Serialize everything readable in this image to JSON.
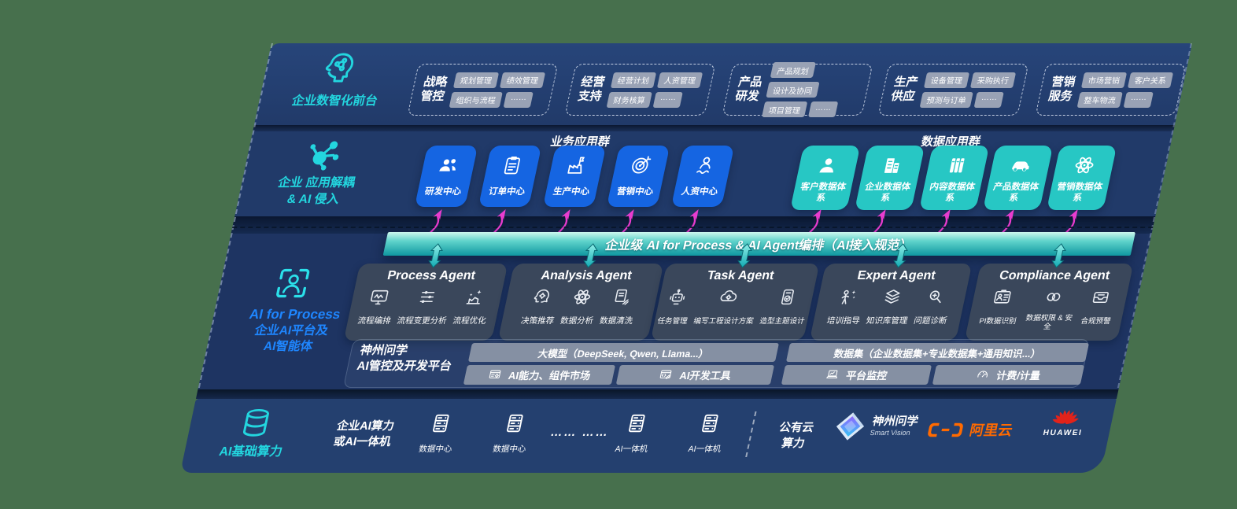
{
  "colors": {
    "background": "#47704D",
    "panel_navy": "#213A69",
    "accent_teal": "#23D6DF",
    "accent_blue": "#1E86FF",
    "app_blue": "#1565E2",
    "data_teal": "#27C7C4",
    "bar_teal_gradient_top": "#CDF8EE",
    "bar_teal_gradient_bottom": "#0F97A0",
    "arrow_magenta": "#E93CCF",
    "alibaba_orange": "#FF6A00",
    "huawei_red": "#E2231A"
  },
  "front_layer": {
    "label": "企业数智化前台",
    "icon": "brain-circuit-icon",
    "groups": [
      {
        "title": "战略管控",
        "items": [
          "规划管理",
          "绩效管理",
          "组织与流程",
          "……"
        ]
      },
      {
        "title": "经营支持",
        "items": [
          "经营计划",
          "人资管理",
          "财务核算",
          "……"
        ]
      },
      {
        "title": "产品研发",
        "items": [
          "产品规划",
          "设计及协同",
          "项目管理",
          "……"
        ]
      },
      {
        "title": "生产供应",
        "items": [
          "设备管理",
          "采购执行",
          "预测与订单",
          "……"
        ]
      },
      {
        "title": "营销服务",
        "items": [
          "市场营销",
          "客户关系",
          "整车物流",
          "……"
        ]
      }
    ]
  },
  "app_layer": {
    "icon": "molecule-icon",
    "label_line1": "企业 应用解耦",
    "label_line2": "& AI 侵入",
    "business_group": {
      "title": "业务应用群",
      "apps": [
        {
          "label": "研发中心",
          "icon": "team-icon"
        },
        {
          "label": "订单中心",
          "icon": "clipboard-icon"
        },
        {
          "label": "生产中心",
          "icon": "factory-icon"
        },
        {
          "label": "营销中心",
          "icon": "target-icon"
        },
        {
          "label": "人资中心",
          "icon": "hr-person-icon"
        }
      ]
    },
    "data_group": {
      "title": "数据应用群",
      "apps": [
        {
          "label": "客户数据体系",
          "icon": "user-icon"
        },
        {
          "label": "企业数据体系",
          "icon": "building-icon"
        },
        {
          "label": "内容数据体系",
          "icon": "books-icon"
        },
        {
          "label": "产品数据体系",
          "icon": "car-icon"
        },
        {
          "label": "营销数据体系",
          "icon": "atom-icon"
        }
      ]
    }
  },
  "ai_bar": {
    "label": "企业级 AI for Process & AI Agent编排（AI接入规范）"
  },
  "agent_layer": {
    "icon": "person-scan-icon",
    "label_line1": "AI for Process",
    "label_line2": "企业AI平台及",
    "label_line3": "AI智能体",
    "agents": [
      {
        "title": "Process Agent",
        "capabilities": [
          {
            "label": "流程编排",
            "icon": "monitor-wave-icon"
          },
          {
            "label": "流程变更分析",
            "icon": "flow-sliders-icon"
          },
          {
            "label": "流程优化",
            "icon": "process-optimize-icon"
          }
        ]
      },
      {
        "title": "Analysis Agent",
        "capabilities": [
          {
            "label": "决策推荐",
            "icon": "head-gear-icon"
          },
          {
            "label": "数据分析",
            "icon": "atom-icon"
          },
          {
            "label": "数据清洗",
            "icon": "doc-clean-icon"
          }
        ]
      },
      {
        "title": "Task Agent",
        "capabilities": [
          {
            "label": "任务管理",
            "icon": "robot-icon"
          },
          {
            "label": "编写工程设计方案",
            "icon": "cloud-gear-icon"
          },
          {
            "label": "造型主题设计",
            "icon": "design-check-icon"
          }
        ]
      },
      {
        "title": "Expert Agent",
        "capabilities": [
          {
            "label": "培训指导",
            "icon": "training-icon"
          },
          {
            "label": "知识库管理",
            "icon": "layers-icon"
          },
          {
            "label": "问题诊断",
            "icon": "diagnose-icon"
          }
        ]
      },
      {
        "title": "Compliance Agent",
        "capabilities": [
          {
            "label": "PI数据识别",
            "icon": "id-card-icon"
          },
          {
            "label": "数据权限 & 安全",
            "icon": "link-circles-icon"
          },
          {
            "label": "合规预警",
            "icon": "alert-inbox-icon"
          }
        ]
      }
    ]
  },
  "platform_layer": {
    "label_line1": "神州问学",
    "label_line2": "AI管控及开发平台",
    "model_bar_label": "大模型（DeepSeek, Qwen, Llama...）",
    "model_cells": [
      {
        "label": "AI能力、组件市场",
        "icon": "window-gear-icon"
      },
      {
        "label": "AI开发工具",
        "icon": "code-tool-icon"
      }
    ],
    "data_bar_label": "数据集（企业数据集+专业数据集+通用知识...）",
    "data_cells": [
      {
        "label": "平台监控",
        "icon": "laptop-chart-icon"
      },
      {
        "label": "计费/计量",
        "icon": "gauge-icon"
      }
    ]
  },
  "infra_layer": {
    "icon": "database-icon",
    "label": "AI基础算力",
    "compute_label_line1": "企业AI算力",
    "compute_label_line2": "或AI一体机",
    "nodes": [
      {
        "label": "数据中心",
        "icon": "server-icon"
      },
      {
        "label": "数据中心",
        "icon": "server-icon"
      },
      {
        "label": "…… ……",
        "icon": null
      },
      {
        "label": "AI一体机",
        "icon": "server-icon"
      },
      {
        "label": "AI一体机",
        "icon": "server-icon"
      }
    ],
    "cloud_label_line1": "公有云",
    "cloud_label_line2": "算力",
    "vendors": [
      {
        "name": "神州问学",
        "subtitle": "Smart Vision",
        "icon": "smartvision-logo"
      },
      {
        "name": "阿里云",
        "icon": "alibabacloud-logo"
      },
      {
        "name": "HUAWEI",
        "icon": "huawei-logo"
      }
    ]
  }
}
